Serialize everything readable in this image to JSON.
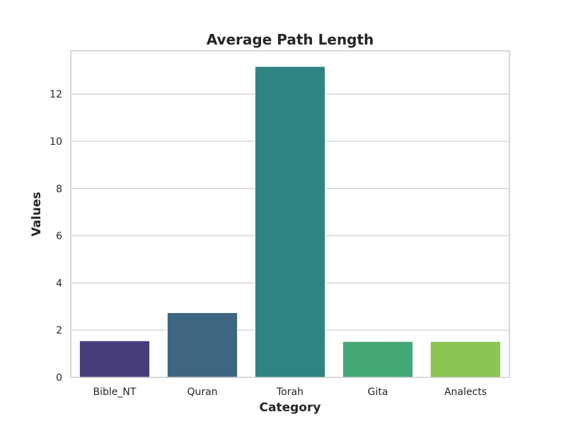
{
  "chart_data": {
    "type": "bar",
    "title": "Average Path Length",
    "xlabel": "Category",
    "ylabel": "Values",
    "categories": [
      "Bible_NT",
      "Quran",
      "Torah",
      "Gita",
      "Analects"
    ],
    "values": [
      1.55,
      2.74,
      13.17,
      1.52,
      1.52
    ],
    "colors": [
      "#483d7b",
      "#3e6683",
      "#2e8480",
      "#44a776",
      "#8bc554"
    ],
    "ylim": [
      0,
      13.83
    ],
    "yticks": [
      "0",
      "2",
      "4",
      "6",
      "8",
      "10",
      "12"
    ],
    "grid": true,
    "grid_color": "#cccccc",
    "frame_color": "#cccccc",
    "legend": "none"
  }
}
